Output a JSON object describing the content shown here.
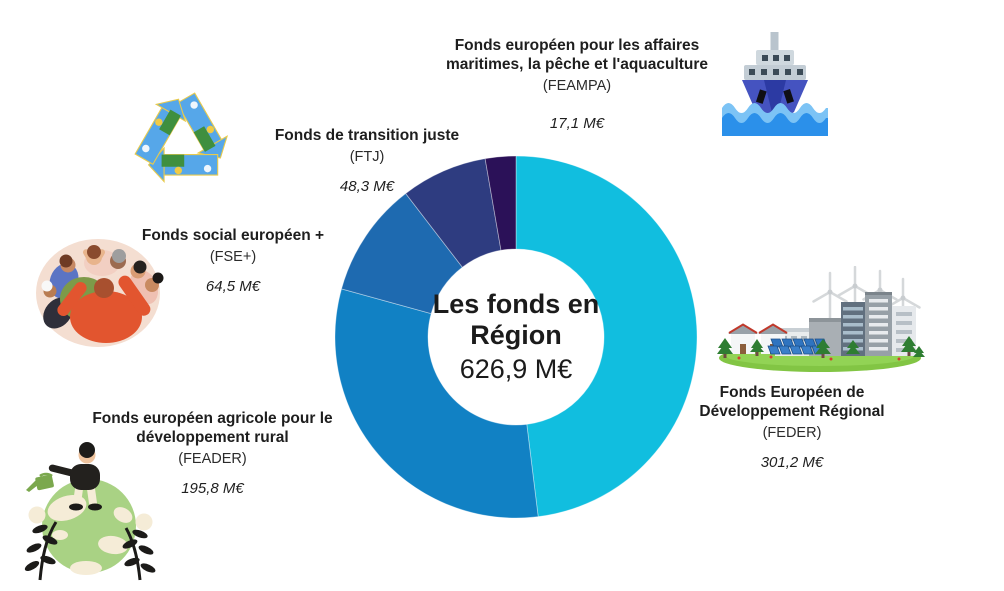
{
  "chart_data": {
    "type": "pie",
    "variant": "donut",
    "direction": "clockwise",
    "start_angle_deg": 0,
    "total_value": 626.9,
    "unit": "M€",
    "legend_position": "around-chart",
    "center": {
      "line1": "Les fonds en",
      "line2": "Région",
      "total": "626,9 M€"
    },
    "segments": [
      {
        "code": "FEDER",
        "code_label": "(FEDER)",
        "label": "Fonds Européen de Développement Régional",
        "value": 301.2,
        "amount_label": "301,2 M€",
        "color": "#11bedf",
        "icon": "green-city-icon"
      },
      {
        "code": "FEADER",
        "code_label": "(FEADER)",
        "label": "Fonds européen agricole pour le développement rural",
        "value": 195.8,
        "amount_label": "195,8 M€",
        "color": "#1181c4",
        "icon": "globe-gardener-icon"
      },
      {
        "code": "FSE+",
        "code_label": "(FSE+)",
        "label": "Fonds social européen +",
        "value": 64.5,
        "amount_label": "64,5 M€",
        "color": "#1e6ab0",
        "icon": "group-hug-icon"
      },
      {
        "code": "FTJ",
        "code_label": "(FTJ)",
        "label": "Fonds de transition juste",
        "value": 48.3,
        "amount_label": "48,3 M€",
        "color": "#2e3c80",
        "icon": "recycling-icon"
      },
      {
        "code": "FEAMPA",
        "code_label": "(FEAMPA)",
        "label": "Fonds européen pour les affaires maritimes, la pêche et l'aquaculture",
        "value": 17.1,
        "amount_label": "17,1 M€",
        "color": "#2b1158",
        "icon": "ship-icon"
      }
    ]
  }
}
